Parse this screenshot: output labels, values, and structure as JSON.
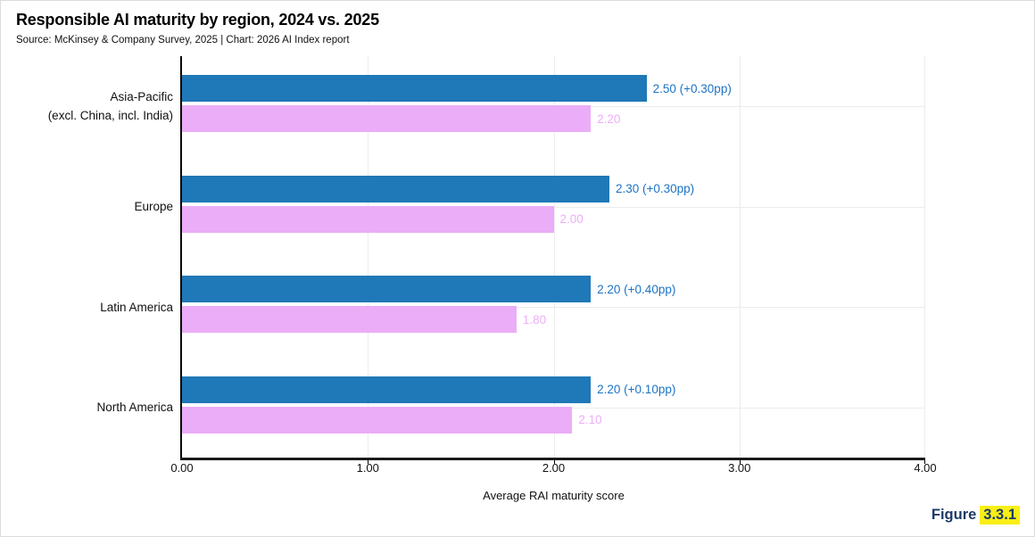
{
  "header": {
    "title": "Responsible AI maturity by region, 2024 vs. 2025",
    "source_line": "Source: McKinsey & Company Survey, 2025 | Chart: 2026 AI Index report"
  },
  "figure_label": {
    "prefix": "Figure",
    "number": "3.3.1"
  },
  "colors": {
    "bar_2025": "#1f78b7",
    "bar_2024": "#ebadf7",
    "value_label_2025": "#1c73c4",
    "value_label_2024": "#eeadf9",
    "figure_text_navy": "#1b3a66",
    "figure_highlight_yellow": "#f8ef17",
    "gridline": "#ececec",
    "axis": "#000000"
  },
  "chart_data": {
    "type": "bar",
    "orientation": "horizontal",
    "title": "Responsible AI maturity by region, 2024 vs. 2025",
    "xlabel": "Average RAI maturity score",
    "ylabel": "",
    "xlim": [
      0,
      4
    ],
    "x_ticks": [
      "0.00",
      "1.00",
      "2.00",
      "3.00",
      "4.00"
    ],
    "grid": true,
    "legend_position": "none",
    "categories": [
      {
        "line1": "Asia-Pacific",
        "line2": "(excl. China, incl. India)"
      },
      {
        "line1": "Europe",
        "line2": ""
      },
      {
        "line1": "Latin America",
        "line2": ""
      },
      {
        "line1": "North America",
        "line2": ""
      }
    ],
    "series": [
      {
        "name": "2025",
        "color": "#1f78b7",
        "values": [
          2.5,
          2.3,
          2.2,
          2.2
        ],
        "labels": [
          "2.50 (+0.30pp)",
          "2.30 (+0.30pp)",
          "2.20 (+0.40pp)",
          "2.20 (+0.10pp)"
        ]
      },
      {
        "name": "2024",
        "color": "#ebadf7",
        "values": [
          2.2,
          2.0,
          1.8,
          2.1
        ],
        "labels": [
          "2.20",
          "2.00",
          "1.80",
          "2.10"
        ]
      }
    ],
    "deltas_pp": [
      0.3,
      0.3,
      0.4,
      0.1
    ]
  }
}
